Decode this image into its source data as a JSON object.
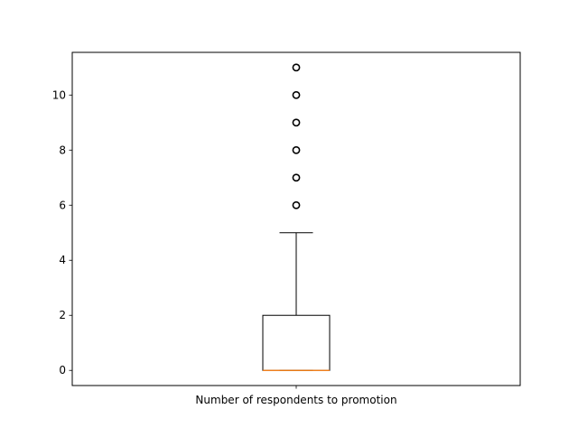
{
  "chart_data": {
    "type": "boxplot",
    "categories": [
      "Number of respondents to promotion"
    ],
    "boxes": [
      {
        "label": "Number of respondents to promotion",
        "whisker_low": 0,
        "q1": 0,
        "median": 0,
        "q3": 2,
        "whisker_high": 5,
        "outliers": [
          6,
          7,
          8,
          9,
          10,
          11
        ]
      }
    ],
    "ylim": [
      -0.55,
      11.55
    ],
    "yticks": [
      0,
      2,
      4,
      6,
      8,
      10
    ],
    "title": "",
    "xlabel": "",
    "ylabel": "",
    "grid": false,
    "colors": {
      "box": "#000000",
      "median": "#ff7f0e",
      "outlier": "#000000"
    }
  }
}
